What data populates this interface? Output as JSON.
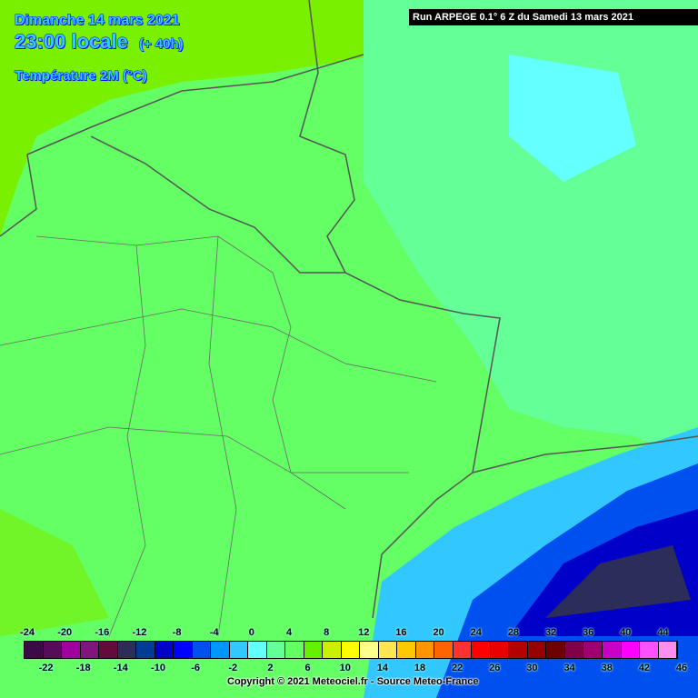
{
  "header": {
    "date": "Dimanche 14 mars 2021",
    "time": "23:00 locale",
    "lead": "(+ 40h)",
    "variable": "Température 2M (°C)"
  },
  "run_label": "Run ARPEGE 0.1° 6 Z du Samedi 13 mars 2021",
  "legend": {
    "top_labels": [
      "-24",
      "-20",
      "-16",
      "-12",
      "-8",
      "-4",
      "0",
      "4",
      "8",
      "12",
      "16",
      "20",
      "24",
      "28",
      "32",
      "36",
      "40",
      "44"
    ],
    "bottom_labels": [
      "-22",
      "-18",
      "-14",
      "-10",
      "-6",
      "-2",
      "2",
      "6",
      "10",
      "14",
      "18",
      "22",
      "26",
      "30",
      "34",
      "38",
      "42",
      "46"
    ],
    "colors": [
      "#3c0a46",
      "#5a0a5a",
      "#a000a0",
      "#82147f",
      "#640a3c",
      "#2d2d5a",
      "#003c96",
      "#0000c8",
      "#0000ff",
      "#0050f0",
      "#0096ff",
      "#32c8ff",
      "#64ffff",
      "#64ff96",
      "#64ff64",
      "#64f000",
      "#c8f000",
      "#ffff00",
      "#ffff8c",
      "#ffe650",
      "#ffc800",
      "#ff9600",
      "#ff6400",
      "#ff3232",
      "#ff0000",
      "#e60000",
      "#b40000",
      "#960000",
      "#6e0000",
      "#820046",
      "#a0006e",
      "#c800c8",
      "#ff00ff",
      "#ff50ff",
      "#ff8cf0"
    ]
  },
  "copyright": "Copyright © 2021 Meteociel.fr - Source Meteo-France"
}
